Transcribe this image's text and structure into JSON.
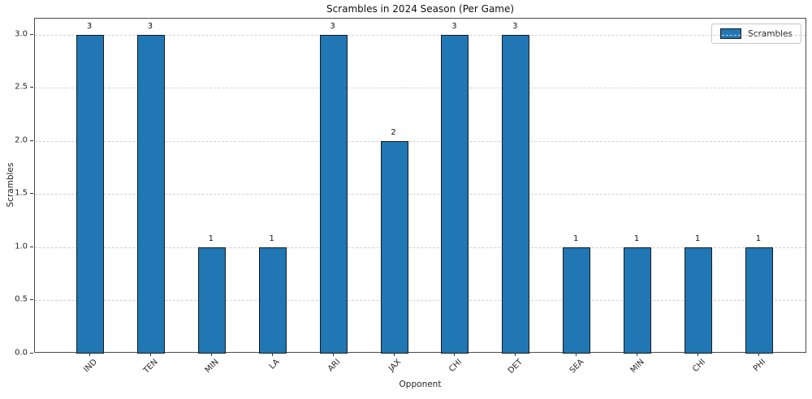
{
  "chart_data": {
    "type": "bar",
    "title": "Scrambles in 2024 Season (Per Game)",
    "xlabel": "Opponent",
    "ylabel": "Scrambles",
    "categories": [
      "IND",
      "TEN",
      "MIN",
      "LA",
      "ARI",
      "JAX",
      "CHI",
      "DET",
      "SEA",
      "MIN",
      "CHI",
      "PHI"
    ],
    "values": [
      3,
      3,
      1,
      1,
      3,
      2,
      3,
      3,
      1,
      1,
      1,
      1
    ],
    "bar_value_labels": [
      "3",
      "3",
      "1",
      "1",
      "3",
      "2",
      "3",
      "3",
      "1",
      "1",
      "1",
      "1"
    ],
    "ytick_labels": [
      "0.0",
      "0.5",
      "1.0",
      "1.5",
      "2.0",
      "2.5",
      "3.0"
    ],
    "ylim": [
      0,
      3.15
    ],
    "grid": {
      "axis": "y",
      "style": "dashed",
      "color": "#d0d0d0"
    },
    "legend": {
      "label": "Scrambles",
      "position": "upper right"
    },
    "colors": {
      "bar_fill": "#2077b4",
      "bar_edge": "#1a1a1a"
    }
  }
}
